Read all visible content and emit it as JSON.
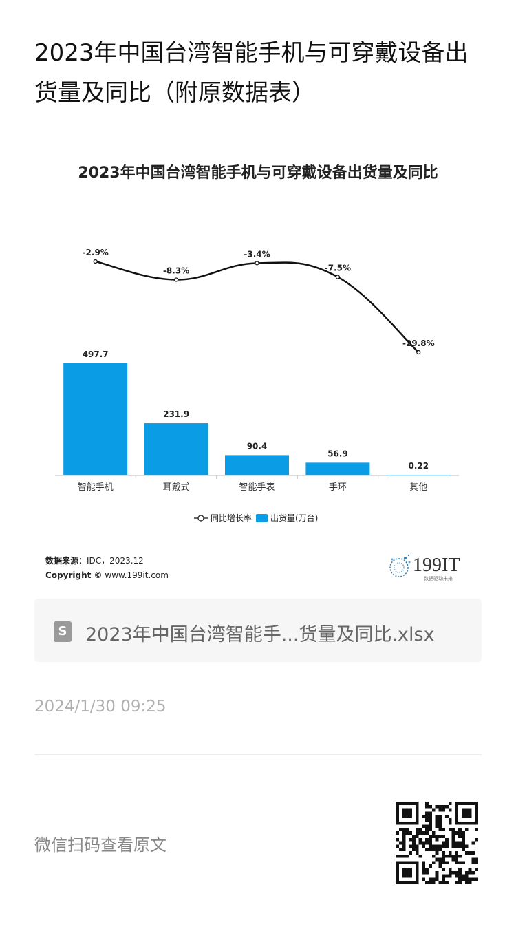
{
  "article": {
    "title": "2023年中国台湾智能手机与可穿戴设备出货量及同比（附原数据表）",
    "file_name": "2023年中国台湾智能手...货量及同比.xlsx",
    "date": "2024/1/30 09:25",
    "read_original": "微信扫码查看原文",
    "file_icon": "S"
  },
  "source": {
    "source_label": "数据来源：",
    "source_value": "IDC，2023.12",
    "copyright_label": "Copyright ©",
    "copyright_value": "www.199it.com"
  },
  "brand": {
    "name": "199IT",
    "tagline": "数据驱动未来"
  },
  "colors": {
    "bar": "#0a9de6",
    "line": "#111111",
    "axis": "#bbbbbb"
  },
  "chart_data": {
    "type": "bar",
    "title": "2023年中国台湾智能手机与可穿戴设备出货量及同比",
    "categories": [
      "智能手机",
      "耳戴式",
      "智能手表",
      "手环",
      "其他"
    ],
    "series": [
      {
        "name": "出货量(万台)",
        "type": "bar",
        "values": [
          497.7,
          231.9,
          90.4,
          56.9,
          0.22
        ],
        "labels": [
          "497.7",
          "231.9",
          "90.4",
          "56.9",
          "0.22"
        ]
      },
      {
        "name": "同比增长率",
        "type": "line",
        "values": [
          -2.9,
          -8.3,
          -3.4,
          -7.5,
          -29.8
        ],
        "labels": [
          "-2.9%",
          "-8.3%",
          "-3.4%",
          "-7.5%",
          "-29.8%"
        ]
      }
    ],
    "legend": {
      "position": "bottom"
    },
    "grid": false
  }
}
